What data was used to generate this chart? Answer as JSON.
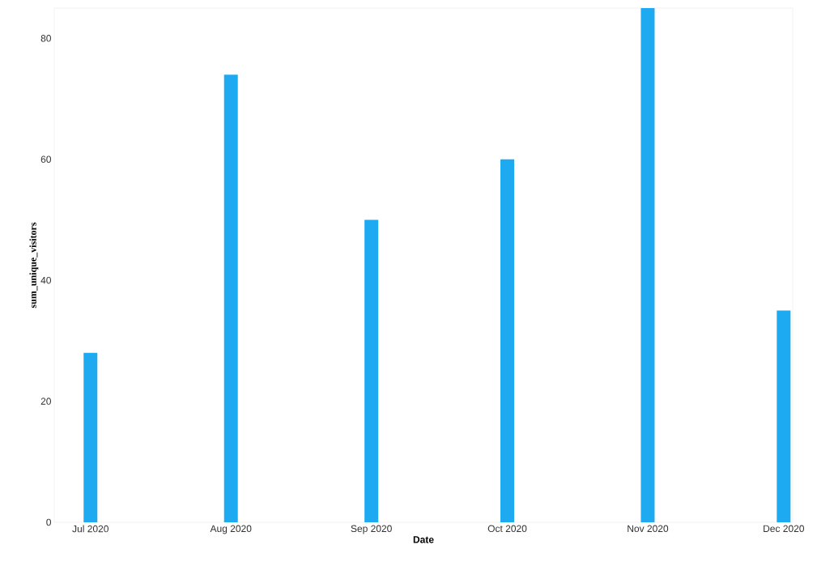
{
  "chart_data": {
    "type": "bar",
    "xlabel": "Date",
    "ylabel": "sum_unique_visitors",
    "x": [
      "2020-07-01",
      "2020-08-01",
      "2020-09-01",
      "2020-10-01",
      "2020-11-01",
      "2020-12-01"
    ],
    "values": [
      28,
      74,
      50,
      60,
      85,
      35
    ],
    "color": "#1eaaf1",
    "xlim": [
      "2020-06-23",
      "2020-12-03"
    ],
    "xticks": [
      {
        "value": "2020-07-01",
        "label": "Jul 2020"
      },
      {
        "value": "2020-08-01",
        "label": "Aug 2020"
      },
      {
        "value": "2020-09-01",
        "label": "Sep 2020"
      },
      {
        "value": "2020-10-01",
        "label": "Oct 2020"
      },
      {
        "value": "2020-11-01",
        "label": "Nov 2020"
      },
      {
        "value": "2020-12-01",
        "label": "Dec 2020"
      }
    ],
    "ylim": [
      0,
      85
    ],
    "yticks": [
      0,
      20,
      40,
      60,
      80
    ]
  }
}
